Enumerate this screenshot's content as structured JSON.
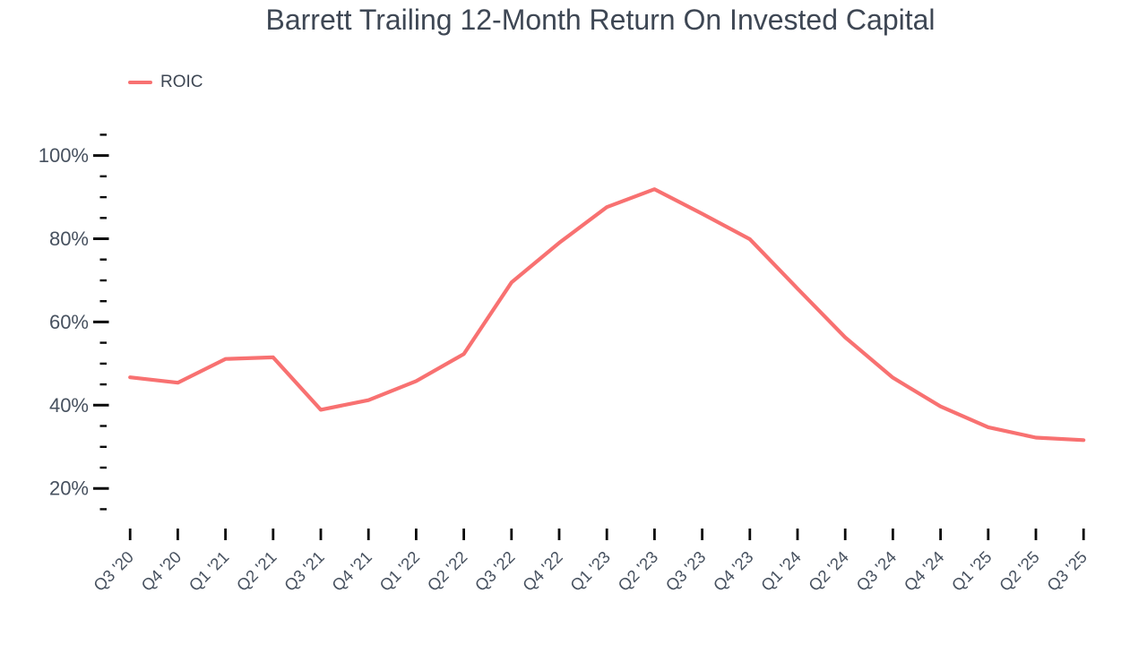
{
  "page_title": "Barrett Trailing 12-Month Return On Invested Capital",
  "legend": {
    "label": "ROIC"
  },
  "chart_data": {
    "type": "line",
    "title": "Barrett Trailing 12-Month Return On Invested Capital",
    "categories": [
      "Q3 '20",
      "Q4 '20",
      "Q1 '21",
      "Q2 '21",
      "Q3 '21",
      "Q4 '21",
      "Q1 '22",
      "Q2 '22",
      "Q3 '22",
      "Q4 '22",
      "Q1 '23",
      "Q2 '23",
      "Q3 '23",
      "Q4 '23",
      "Q1 '24",
      "Q2 '24",
      "Q3 '24",
      "Q4 '24",
      "Q1 '25",
      "Q2 '25",
      "Q3 '25"
    ],
    "series": [
      {
        "name": "ROIC",
        "color": "#F87171",
        "values": [
          46.7,
          45.4,
          51.1,
          51.5,
          38.9,
          41.2,
          45.8,
          52.3,
          69.5,
          79.0,
          87.6,
          91.9,
          86.0,
          79.9,
          68.0,
          56.3,
          46.6,
          39.7,
          34.7,
          32.2,
          31.6
        ]
      }
    ],
    "xlabel": "",
    "ylabel": "",
    "ylim": [
      15,
      105
    ],
    "y_major_ticks": [
      20,
      40,
      60,
      80,
      100
    ],
    "y_tick_labels": [
      "20%",
      "40%",
      "60%",
      "80%",
      "100%"
    ],
    "y_minor_step": 5,
    "grid": false,
    "legend_position": "top-left",
    "colors": {
      "line": "#F87171",
      "title_text": "#3E4754",
      "axis_label_text": "#47515F",
      "tick_mark": "#0A0A0A",
      "background": "#FFFFFF"
    }
  }
}
